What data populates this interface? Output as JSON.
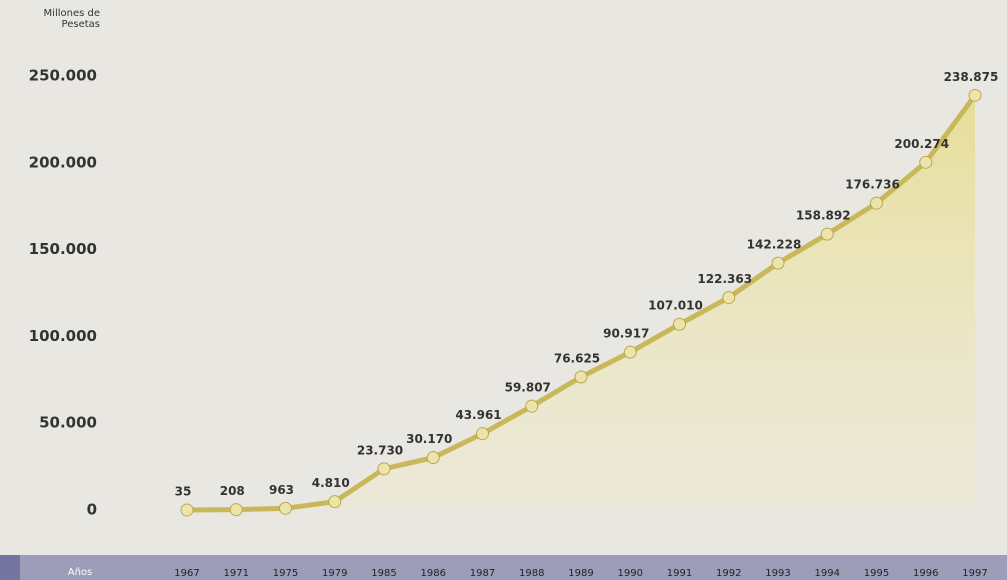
{
  "chart_data": {
    "type": "line",
    "y_label": "Millones de Pesetas",
    "x_label": "Años",
    "categories": [
      "1967",
      "1971",
      "1975",
      "1979",
      "1985",
      "1986",
      "1987",
      "1988",
      "1989",
      "1990",
      "1991",
      "1992",
      "1993",
      "1994",
      "1995",
      "1996",
      "1997"
    ],
    "values": [
      35,
      208,
      963,
      4810,
      23730,
      30170,
      43961,
      59807,
      76625,
      90917,
      107010,
      122363,
      142228,
      158892,
      176736,
      200274,
      238875
    ],
    "value_labels": [
      "35",
      "208",
      "963",
      "4.810",
      "23.730",
      "30.170",
      "43.961",
      "59.807",
      "76.625",
      "90.917",
      "107.010",
      "122.363",
      "142.228",
      "158.892",
      "176.736",
      "200.274",
      "238.875"
    ],
    "color": "#c9b85a",
    "ylim": [
      0,
      250000
    ],
    "yticks": [
      0,
      {
        "value": 50000,
        "label": "50.000"
      },
      {
        "value": 100000,
        "label": "100.000"
      },
      {
        "value": 150000,
        "label": "150.000"
      },
      {
        "value": 200000,
        "label": "200.000"
      },
      {
        "value": 250000,
        "label": "250.000"
      }
    ]
  }
}
